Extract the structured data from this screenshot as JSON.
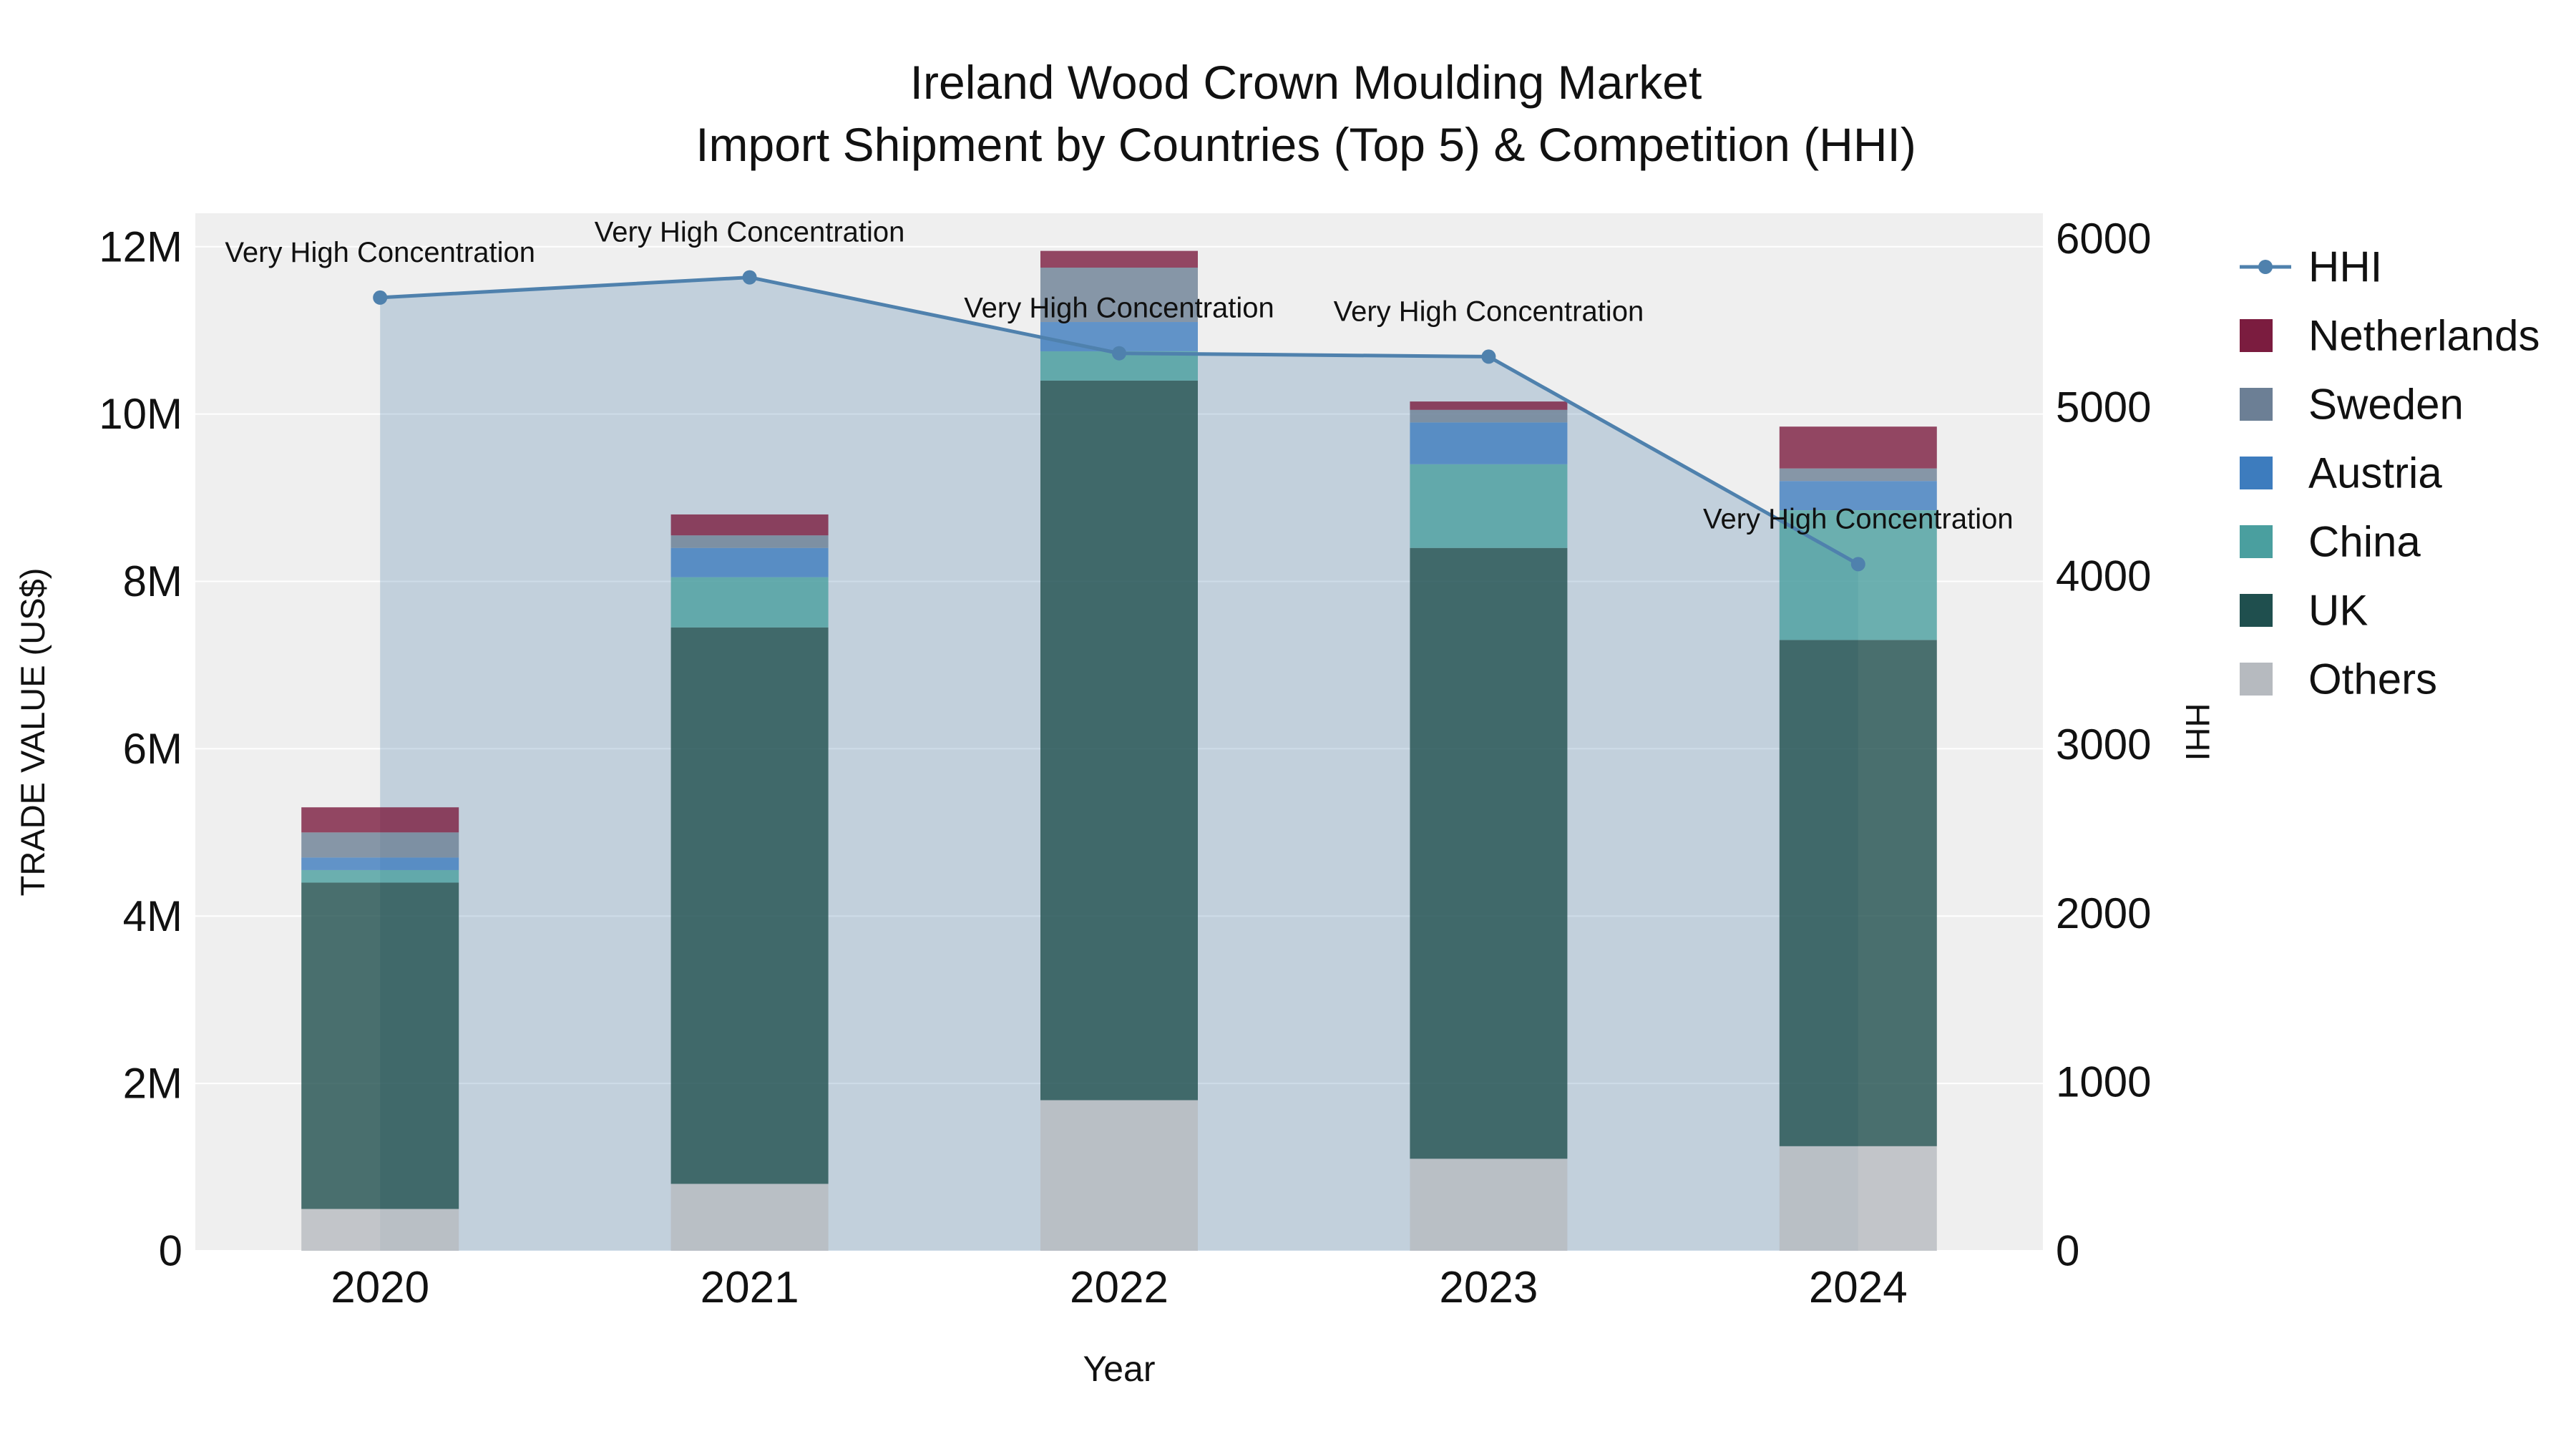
{
  "title": {
    "line1": "Ireland Wood Crown Moulding Market",
    "line2": "Import Shipment by Countries (Top 5) & Competition (HHI)"
  },
  "chart_data": {
    "type": "bar",
    "subtype": "stacked-bars-with-hhi-line-and-area",
    "categories": [
      "2020",
      "2021",
      "2022",
      "2023",
      "2024"
    ],
    "xlabel": "Year",
    "ylabel_left": "TRADE VALUE (US$)",
    "ylabel_right": "HHI",
    "y_left": {
      "tick_labels": [
        "0",
        "2M",
        "4M",
        "6M",
        "8M",
        "10M",
        "12M"
      ],
      "tick_values": [
        0,
        2000000,
        4000000,
        6000000,
        8000000,
        10000000,
        12000000
      ],
      "max": 12400000
    },
    "y_right": {
      "tick_labels": [
        "0",
        "1000",
        "2000",
        "3000",
        "4000",
        "5000",
        "6000"
      ],
      "tick_values": [
        0,
        1000,
        2000,
        3000,
        4000,
        5000,
        6000
      ],
      "max": 6150
    },
    "series": [
      {
        "name": "Others",
        "color": "#b6babf",
        "values": [
          500000,
          800000,
          1800000,
          1100000,
          1250000
        ]
      },
      {
        "name": "UK",
        "color": "#1f4f4e",
        "values": [
          3900000,
          6650000,
          8600000,
          7300000,
          6050000
        ]
      },
      {
        "name": "China",
        "color": "#4a9f9f",
        "values": [
          150000,
          600000,
          350000,
          1000000,
          1550000
        ]
      },
      {
        "name": "Austria",
        "color": "#3d7cbe",
        "values": [
          150000,
          350000,
          350000,
          500000,
          350000
        ]
      },
      {
        "name": "Sweden",
        "color": "#6c7f95",
        "values": [
          300000,
          150000,
          650000,
          150000,
          150000
        ]
      },
      {
        "name": "Netherlands",
        "color": "#7b1c3f",
        "values": [
          300000,
          250000,
          200000,
          100000,
          500000
        ]
      }
    ],
    "line_series": {
      "name": "HHI",
      "color": "#4f81ad",
      "area_fill_opacity": 0.28,
      "values": [
        5650,
        5770,
        5320,
        5300,
        4070
      ]
    },
    "annotations": [
      {
        "category": "2020",
        "text": "Very High Concentration"
      },
      {
        "category": "2021",
        "text": "Very High Concentration"
      },
      {
        "category": "2022",
        "text": "Very High Concentration"
      },
      {
        "category": "2023",
        "text": "Very High Concentration"
      },
      {
        "category": "2024",
        "text": "Very High Concentration"
      }
    ],
    "legend": [
      {
        "label": "HHI",
        "type": "line"
      },
      {
        "label": "Netherlands",
        "type": "swatch"
      },
      {
        "label": "Sweden",
        "type": "swatch"
      },
      {
        "label": "Austria",
        "type": "swatch"
      },
      {
        "label": "China",
        "type": "swatch"
      },
      {
        "label": "UK",
        "type": "swatch"
      },
      {
        "label": "Others",
        "type": "swatch"
      }
    ],
    "plot_bg": "#efefef",
    "grid_color": "#ffffff",
    "bar_opacity": 0.8,
    "text_color": "#111111"
  }
}
